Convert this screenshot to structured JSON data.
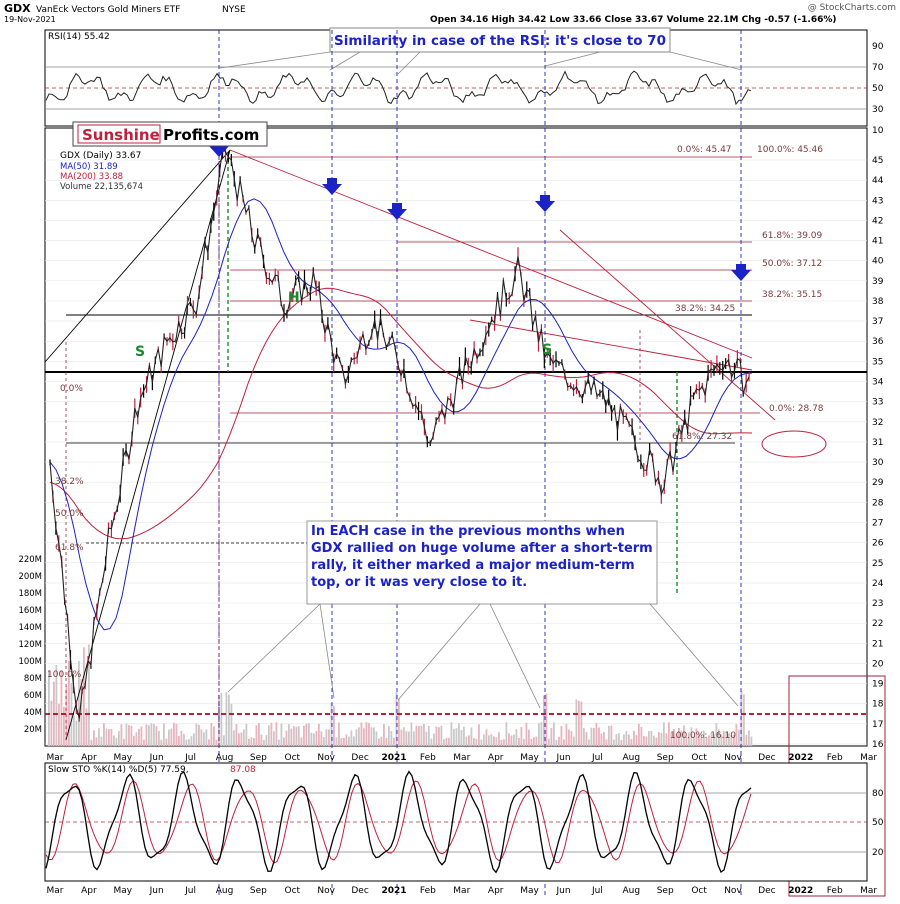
{
  "header": {
    "ticker": "GDX",
    "name": "VanEck Vectors Gold Miners ETF",
    "exchange": "NYSE",
    "date": "19-Nov-2021",
    "stats": "Open 34.16  High 34.42  Low 33.66  Close 33.67  Volume 22.1M  Chg -0.57 (-1.66%)",
    "watermark": "@ StockCharts.com"
  },
  "logo": {
    "part1": "Sunshine",
    "part2": "Profits.com"
  },
  "rsi_panel": {
    "label": "RSI(14) 55.42",
    "ticks": [
      "90",
      "70",
      "50",
      "30",
      "10"
    ],
    "callout": "Similarity in case of the RSI: it's close to 70"
  },
  "main_panel": {
    "legend": [
      "GDX (Daily) 33.67",
      "MA(50) 31.89",
      "MA(200) 33.88",
      "Volume 22,135,674"
    ],
    "price_ticks": [
      "45",
      "44",
      "43",
      "42",
      "41",
      "40",
      "39",
      "38",
      "37",
      "36",
      "35",
      "34",
      "33",
      "32",
      "31",
      "30",
      "29",
      "28",
      "27",
      "26",
      "25",
      "24",
      "23",
      "22",
      "21",
      "20",
      "19",
      "18",
      "17",
      "16"
    ],
    "volume_ticks": [
      "220M",
      "200M",
      "180M",
      "160M",
      "140M",
      "120M",
      "100M",
      "80M",
      "60M",
      "40M",
      "20M"
    ],
    "fib_labels": [
      "0.0%: 45.47",
      "100.0%: 45.46",
      "61.8%: 39.09",
      "50.0%: 37.12",
      "38.2%: 35.15",
      "38.2%: 34.25",
      "0.0%: 28.78",
      "61.8%: 27.32"
    ],
    "left_fib_labels": [
      "0.0%",
      "38.2%",
      "50.0%",
      "61.8%",
      "100.0%"
    ],
    "fib_bottom": "100.0%: 16.10",
    "pattern_letters": {
      "left_s1": "S",
      "head": "H",
      "right_s": "S"
    },
    "annotation": "In EACH case in the previous months when GDX rallied on huge volume after a short-term rally, it either marked a major medium-term top, or it was very close to it."
  },
  "x_axis": {
    "labels": [
      "Mar",
      "Apr",
      "May",
      "Jun",
      "Jul",
      "Aug",
      "Sep",
      "Oct",
      "Nov",
      "Dec",
      "2021",
      "Feb",
      "Mar",
      "Apr",
      "May",
      "Jun",
      "Jul",
      "Aug",
      "Sep",
      "Oct",
      "Nov",
      "Dec",
      "2022",
      "Feb",
      "Mar"
    ]
  },
  "sto_panel": {
    "label": "Slow STO %K(14) %D(5) 77.59,",
    "label_d": "87.08",
    "ticks": [
      "80",
      "50",
      "20"
    ]
  },
  "chart_data": {
    "type": "candlestick",
    "title": "GDX VanEck Vectors Gold Miners ETF NYSE",
    "x_range": [
      "2020-03",
      "2022-03"
    ],
    "y_range": [
      16,
      46
    ],
    "series": [
      {
        "name": "GDX (Daily)",
        "x": [
          "2020-03",
          "2020-03-20",
          "2020-04",
          "2020-05",
          "2020-06",
          "2020-07",
          "2020-08-05",
          "2020-09",
          "2020-10",
          "2020-11",
          "2020-12",
          "2021-01",
          "2021-02",
          "2021-03",
          "2021-04",
          "2021-05",
          "2021-05-25",
          "2021-06",
          "2021-07",
          "2021-08",
          "2021-09",
          "2021-09-30",
          "2021-10",
          "2021-11-15",
          "2021-11-19"
        ],
        "values": [
          30,
          17,
          26,
          33,
          36,
          38,
          45.5,
          41,
          38,
          39,
          34,
          37,
          35,
          31,
          34,
          37,
          39.5,
          35,
          34,
          33,
          31,
          29,
          33,
          35.2,
          33.67
        ]
      },
      {
        "name": "MA(50)",
        "last": 31.89
      },
      {
        "name": "MA(200)",
        "last": 33.88
      }
    ],
    "volume_last": 22135674,
    "rsi_last": 55.42,
    "sto_k": 77.59,
    "sto_d": 87.08
  }
}
